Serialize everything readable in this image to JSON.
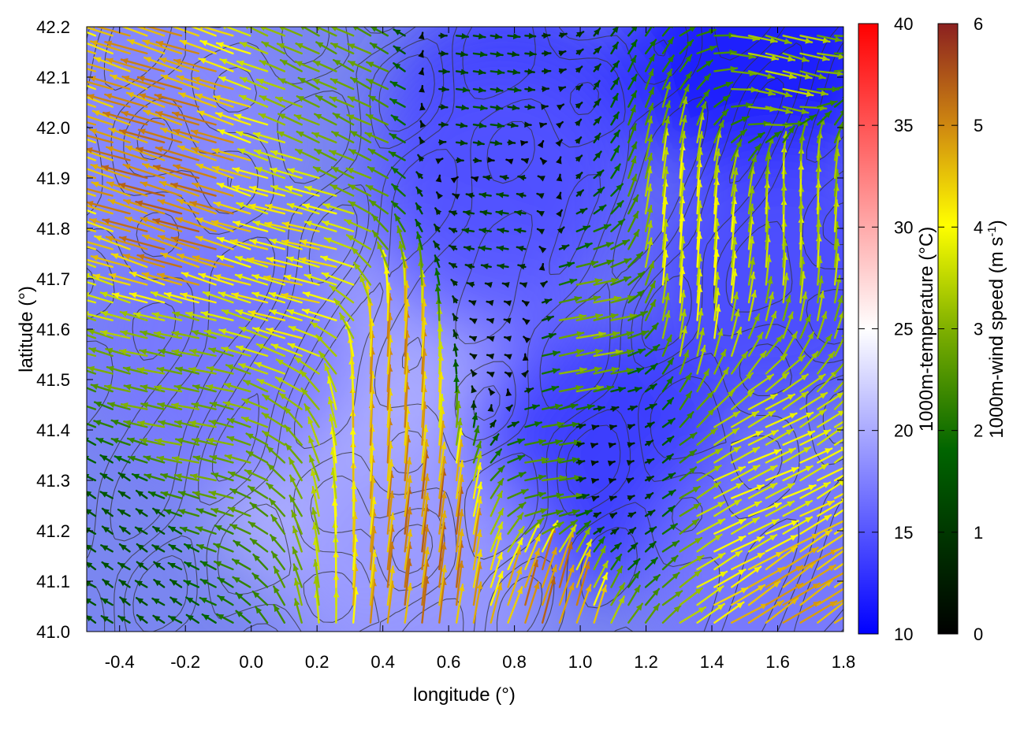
{
  "chart_data": {
    "type": "heatmap",
    "subtype": "temperature field with wind vector arrows and contour lines",
    "xlabel": "longitude (°)",
    "ylabel": "latitude (°)",
    "xlim": [
      -0.5,
      1.8
    ],
    "ylim": [
      41.0,
      42.2
    ],
    "x_ticks": [
      "-0.4",
      "-0.2",
      "0.0",
      "0.2",
      "0.4",
      "0.6",
      "0.8",
      "1.0",
      "1.2",
      "1.4",
      "1.6",
      "1.8"
    ],
    "y_ticks": [
      "41.0",
      "41.1",
      "41.2",
      "41.3",
      "41.4",
      "41.5",
      "41.6",
      "41.7",
      "41.8",
      "41.9",
      "42.0",
      "42.1",
      "42.2"
    ],
    "grid": false,
    "temperature_colorbar": {
      "label": "1000m-temperature (°C)",
      "range": [
        10,
        40
      ],
      "ticks": [
        "10",
        "15",
        "20",
        "25",
        "30",
        "35",
        "40"
      ],
      "colors": [
        "#0000ff",
        "#ffffff",
        "#ff0000"
      ]
    },
    "wind_colorbar": {
      "label_main": "1000m-wind speed (m s",
      "label_sup": "-1",
      "label_end": ")",
      "range": [
        0,
        6
      ],
      "ticks": [
        "0",
        "1",
        "2",
        "3",
        "4",
        "5",
        "6"
      ],
      "colors": [
        "#000000",
        "#006400",
        "#ffff00",
        "#8b2020"
      ]
    },
    "temperature_regions_degC": [
      {
        "lon": -0.3,
        "lat": 42.0,
        "t": 18
      },
      {
        "lon": 0.3,
        "lat": 41.3,
        "t": 21
      },
      {
        "lon": 0.6,
        "lat": 41.6,
        "t": 20
      },
      {
        "lon": 0.8,
        "lat": 42.0,
        "t": 13
      },
      {
        "lon": 0.75,
        "lat": 41.85,
        "t": 15
      },
      {
        "lon": 1.05,
        "lat": 41.35,
        "t": 13
      },
      {
        "lon": 1.55,
        "lat": 42.15,
        "t": 11
      },
      {
        "lon": 1.6,
        "lat": 41.7,
        "t": 14
      },
      {
        "lon": 1.6,
        "lat": 41.1,
        "t": 17
      },
      {
        "lon": -0.1,
        "lat": 41.55,
        "t": 17
      },
      {
        "lon": 0.5,
        "lat": 41.1,
        "t": 19
      }
    ],
    "wind_regions": [
      {
        "lon": -0.2,
        "lat": 41.85,
        "u": -4.8,
        "v": 1.5
      },
      {
        "lon": 0.2,
        "lat": 41.75,
        "u": -4.0,
        "v": 1.0
      },
      {
        "lon": -0.2,
        "lat": 41.45,
        "u": -2.8,
        "v": 0.6
      },
      {
        "lon": -0.35,
        "lat": 41.15,
        "u": -1.2,
        "v": 0.8
      },
      {
        "lon": 0.3,
        "lat": 42.0,
        "u": -2.5,
        "v": 1.2
      },
      {
        "lon": 0.7,
        "lat": 42.05,
        "u": 1.4,
        "v": -0.2
      },
      {
        "lon": 0.75,
        "lat": 41.8,
        "u": -1.3,
        "v": 0.2
      },
      {
        "lon": 0.75,
        "lat": 41.6,
        "u": -0.4,
        "v": 0.1
      },
      {
        "lon": 0.45,
        "lat": 41.5,
        "u": 0.3,
        "v": 4.8
      },
      {
        "lon": 0.55,
        "lat": 41.15,
        "u": 0.6,
        "v": 5.0
      },
      {
        "lon": 0.9,
        "lat": 41.05,
        "u": 1.5,
        "v": 4.8
      },
      {
        "lon": 1.05,
        "lat": 41.35,
        "u": 0.4,
        "v": 0.1
      },
      {
        "lon": 1.0,
        "lat": 41.55,
        "u": 3.0,
        "v": 0.6
      },
      {
        "lon": 1.35,
        "lat": 41.75,
        "u": 0.3,
        "v": 3.8
      },
      {
        "lon": 1.65,
        "lat": 41.85,
        "u": 0.1,
        "v": 3.5
      },
      {
        "lon": 1.55,
        "lat": 41.25,
        "u": 3.4,
        "v": 1.6
      },
      {
        "lon": 1.6,
        "lat": 41.05,
        "u": 4.0,
        "v": 2.6
      },
      {
        "lon": 1.6,
        "lat": 42.12,
        "u": 3.2,
        "v": -0.8
      },
      {
        "lon": 0.9,
        "lat": 41.3,
        "u": 2.5,
        "v": 0.4
      }
    ]
  }
}
